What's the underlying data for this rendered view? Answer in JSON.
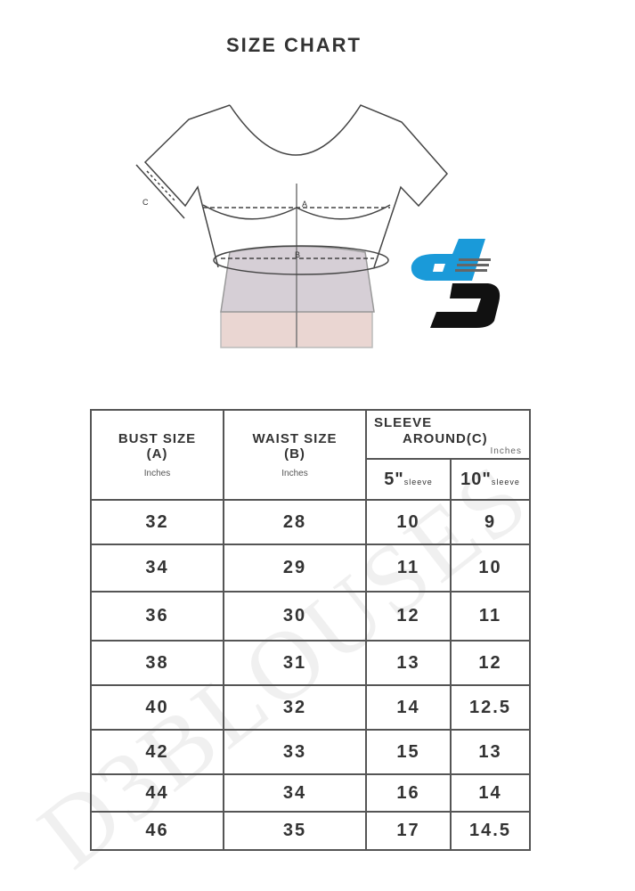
{
  "title": "SIZE CHART",
  "diagram": {
    "label_a": "A",
    "label_b": "B",
    "label_c": "C"
  },
  "logo": {
    "text": "d3",
    "colors": {
      "blue": "#1a9ad9",
      "black": "#111111"
    }
  },
  "watermark": "D3BLOUSES",
  "table": {
    "headers": {
      "bust": "BUST SIZE",
      "bust_code": "(A)",
      "bust_unit": "Inches",
      "waist": "WAIST SIZE",
      "waist_code": "(B)",
      "waist_unit": "Inches",
      "sleeve_line1": "SLEEVE",
      "sleeve_line2": "AROUND",
      "sleeve_code": "(C)",
      "sleeve_unit": "Inches",
      "sleeve5_num": "5\"",
      "sleeve5_label": "sleeve",
      "sleeve10_num": "10\"",
      "sleeve10_label": "sleeve"
    },
    "rows": [
      [
        "32",
        "28",
        "10",
        "9"
      ],
      [
        "34",
        "29",
        "11",
        "10"
      ],
      [
        "36",
        "30",
        "12",
        "11"
      ],
      [
        "38",
        "31",
        "13",
        "12"
      ],
      [
        "40",
        "32",
        "14",
        "12.5"
      ],
      [
        "42",
        "33",
        "15",
        "13"
      ],
      [
        "44",
        "34",
        "16",
        "14"
      ],
      [
        "46",
        "35",
        "17",
        "14.5"
      ]
    ]
  }
}
